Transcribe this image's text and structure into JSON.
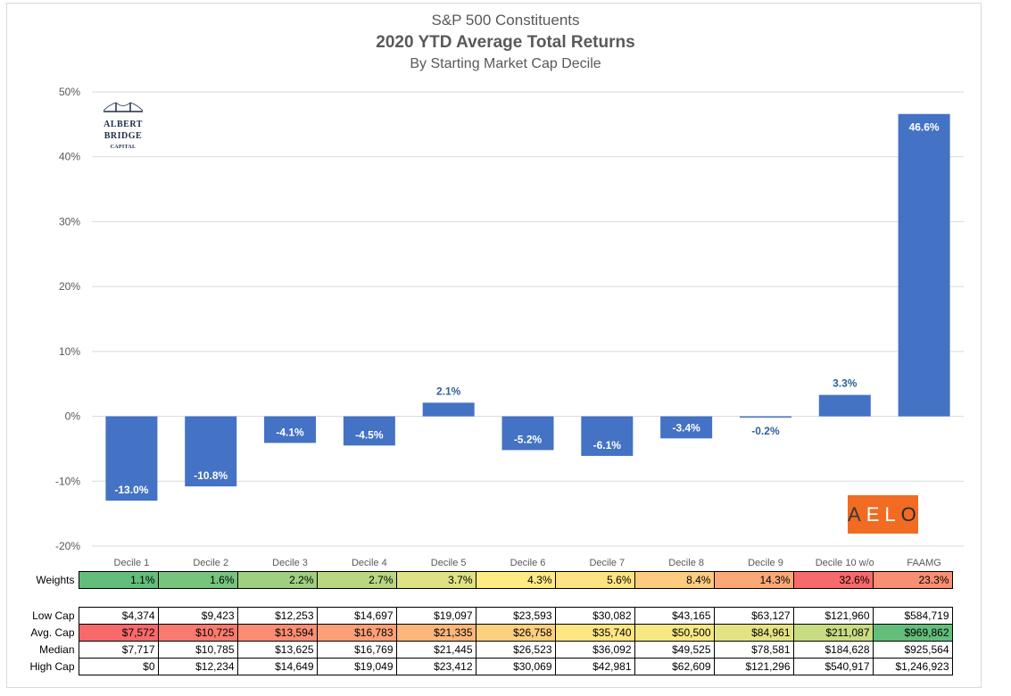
{
  "chart_data": {
    "type": "bar",
    "title": "S&P 500 Constituents",
    "subtitle": "2020 YTD Average Total Returns",
    "subtitle2": "By Starting Market Cap Decile",
    "categories": [
      "Decile 1",
      "Decile 2",
      "Decile 3",
      "Decile 4",
      "Decile 5",
      "Decile 6",
      "Decile 7",
      "Decile 8",
      "Decile 9",
      "Decile 10 w/o",
      "FAAMG"
    ],
    "values": [
      -13.0,
      -10.8,
      -4.1,
      -4.5,
      2.1,
      -5.2,
      -6.1,
      -3.4,
      -0.2,
      3.3,
      46.6
    ],
    "data_labels": [
      "-13.0%",
      "-10.8%",
      "-4.1%",
      "-4.5%",
      "2.1%",
      "-5.2%",
      "-6.1%",
      "-3.4%",
      "-0.2%",
      "3.3%",
      "46.6%"
    ],
    "ylim": [
      -20,
      50
    ],
    "yticks": [
      "-20%",
      "-10%",
      "0%",
      "10%",
      "20%",
      "30%",
      "40%",
      "50%"
    ],
    "grid": true,
    "bar_color": "#4472c4"
  },
  "logos": {
    "albert_bridge": [
      "ALBERT",
      "BRIDGE",
      "CAPITAL"
    ],
    "aelo": [
      "A",
      "E",
      "L",
      "O"
    ]
  },
  "weights": {
    "label": "Weights",
    "values": [
      "1.1%",
      "1.6%",
      "2.2%",
      "2.7%",
      "3.7%",
      "4.3%",
      "5.6%",
      "8.4%",
      "14.3%",
      "32.6%",
      "23.3%"
    ],
    "colors": [
      "#63be7b",
      "#77c47d",
      "#9fcf80",
      "#b9d780",
      "#dfe282",
      "#ffeb84",
      "#fee382",
      "#fdcc7e",
      "#fba877",
      "#f8696b",
      "#f98f72"
    ]
  },
  "cap_table": {
    "rows": [
      {
        "label": "Low Cap",
        "values": [
          "$4,374",
          "$9,423",
          "$12,253",
          "$14,697",
          "$19,097",
          "$23,593",
          "$30,082",
          "$43,165",
          "$63,127",
          "$121,960",
          "$584,719"
        ],
        "colors": []
      },
      {
        "label": "Avg. Cap",
        "values": [
          "$7,572",
          "$10,725",
          "$13,594",
          "$16,783",
          "$21,335",
          "$26,758",
          "$35,740",
          "$50,500",
          "$84,961",
          "$211,087",
          "$969,862"
        ],
        "colors": [
          "#f8696b",
          "#f97a6e",
          "#fa8d72",
          "#fba076",
          "#fcb67a",
          "#fdd07f",
          "#fee683",
          "#f6e884",
          "#e4e383",
          "#c8dc81",
          "#63be7b"
        ]
      },
      {
        "label": "Median",
        "values": [
          "$7,717",
          "$10,785",
          "$13,625",
          "$16,769",
          "$21,445",
          "$26,523",
          "$36,092",
          "$49,525",
          "$78,581",
          "$184,628",
          "$925,564"
        ],
        "colors": []
      },
      {
        "label": "High Cap",
        "values": [
          "$0",
          "$12,234",
          "$14,649",
          "$19,049",
          "$23,412",
          "$30,069",
          "$42,981",
          "$62,609",
          "$121,296",
          "$540,917",
          "$1,246,923"
        ],
        "colors": []
      }
    ]
  }
}
